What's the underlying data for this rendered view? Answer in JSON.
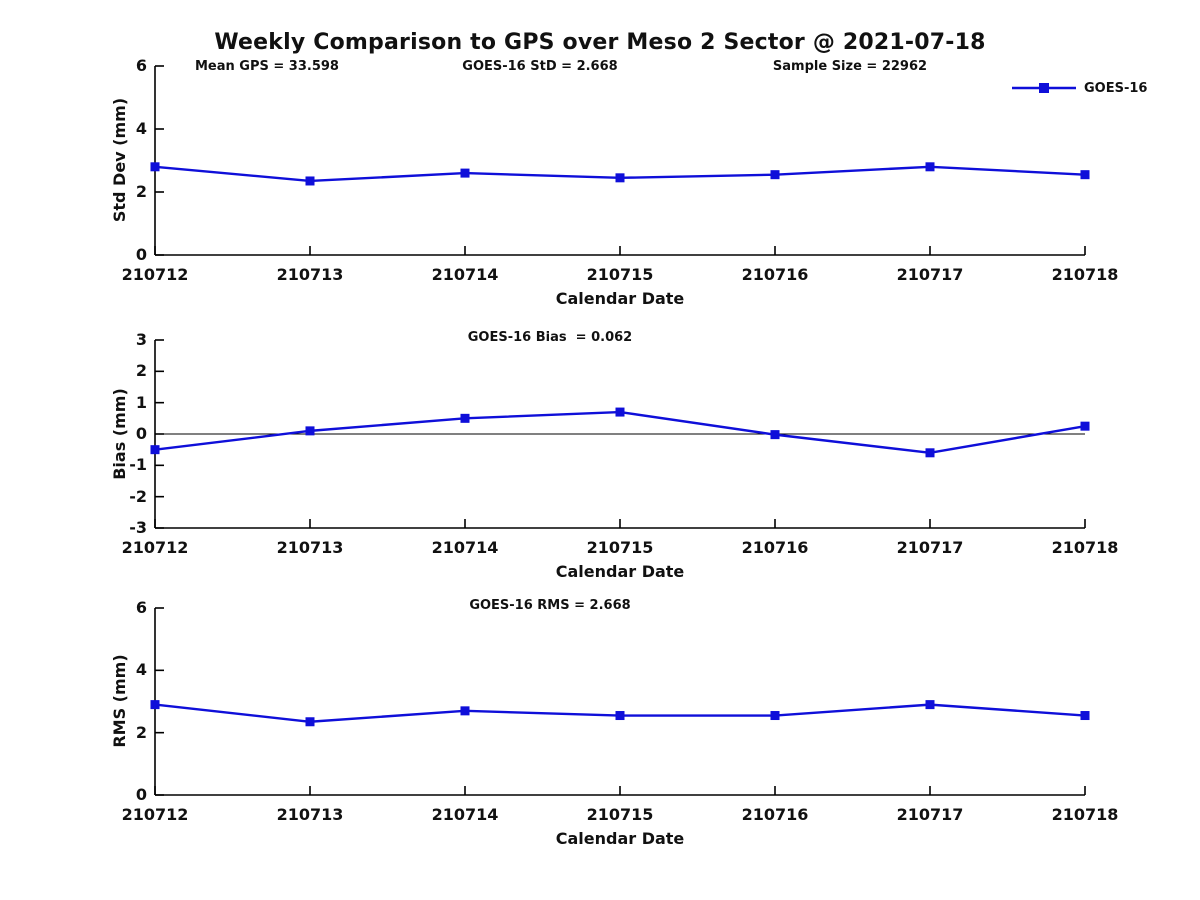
{
  "title": "Weekly Comparison to GPS over Meso 2 Sector @ 2021-07-18",
  "legend": {
    "label": "GOES-16"
  },
  "colors": {
    "line": "#0f0fd9",
    "axis": "#000000",
    "text": "#111111"
  },
  "chart_data": [
    {
      "type": "line",
      "subplot": "std-dev",
      "stats": [
        "Mean GPS = 33.598",
        "GOES-16 StD = 2.668",
        "Sample Size = 22962"
      ],
      "categories": [
        "210712",
        "210713",
        "210714",
        "210715",
        "210716",
        "210717",
        "210718"
      ],
      "series": [
        {
          "name": "GOES-16",
          "values": [
            2.8,
            2.35,
            2.6,
            2.45,
            2.55,
            2.8,
            2.55
          ]
        }
      ],
      "xlabel": "Calendar Date",
      "ylabel": "Std Dev (mm)",
      "ylim": [
        0,
        6
      ],
      "yticks": [
        0,
        2,
        4,
        6
      ],
      "zero_line": false,
      "grid": false,
      "legend_position": "upper-right-outside",
      "marker": "square"
    },
    {
      "type": "line",
      "subplot": "bias",
      "stats": [
        "GOES-16 Bias  = 0.062"
      ],
      "categories": [
        "210712",
        "210713",
        "210714",
        "210715",
        "210716",
        "210717",
        "210718"
      ],
      "series": [
        {
          "name": "GOES-16",
          "values": [
            -0.5,
            0.1,
            0.5,
            0.7,
            -0.02,
            -0.6,
            0.25
          ]
        }
      ],
      "xlabel": "Calendar Date",
      "ylabel": "Bias (mm)",
      "ylim": [
        -3,
        3
      ],
      "yticks": [
        -3,
        -2,
        -1,
        0,
        1,
        2,
        3
      ],
      "zero_line": true,
      "grid": false,
      "marker": "square"
    },
    {
      "type": "line",
      "subplot": "rms",
      "stats": [
        "GOES-16 RMS = 2.668"
      ],
      "categories": [
        "210712",
        "210713",
        "210714",
        "210715",
        "210716",
        "210717",
        "210718"
      ],
      "series": [
        {
          "name": "GOES-16",
          "values": [
            2.9,
            2.35,
            2.7,
            2.55,
            2.55,
            2.9,
            2.55
          ]
        }
      ],
      "xlabel": "Calendar Date",
      "ylabel": "RMS (mm)",
      "ylim": [
        0,
        6
      ],
      "yticks": [
        0,
        2,
        4,
        6
      ],
      "zero_line": false,
      "grid": false,
      "marker": "square"
    }
  ]
}
